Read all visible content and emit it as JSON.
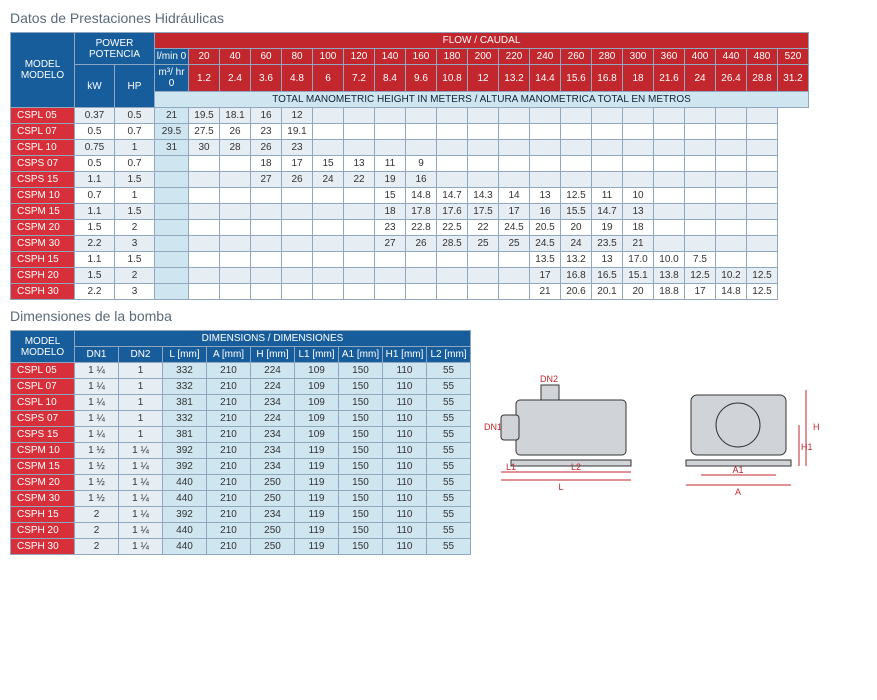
{
  "hydraulic": {
    "title": "Datos de Prestaciones Hidráulicas",
    "model_hdr": "MODEL MODELO",
    "power_hdr": "POWER POTENCIA",
    "kw_hdr": "kW",
    "hp_hdr": "HP",
    "flow_hdr": "FLOW / CAUDAL",
    "lmin_hdr": "l/min 0",
    "m3hr_hdr": "m³/ hr 0",
    "band": "TOTAL MANOMETRIC HEIGHT IN METERS / ALTURA MANOMETRICA TOTAL EN METROS",
    "flow_lmin": [
      "20",
      "40",
      "60",
      "80",
      "100",
      "120",
      "140",
      "160",
      "180",
      "200",
      "220",
      "240",
      "260",
      "280",
      "300",
      "360",
      "400",
      "440",
      "480",
      "520"
    ],
    "flow_m3hr": [
      "1.2",
      "2.4",
      "3.6",
      "4.8",
      "6",
      "7.2",
      "8.4",
      "9.6",
      "10.8",
      "12",
      "13.2",
      "14.4",
      "15.6",
      "16.8",
      "18",
      "21.6",
      "24",
      "26.4",
      "28.8",
      "31.2"
    ],
    "rows": [
      {
        "m": "CSPL 05",
        "kw": "0.37",
        "hp": "0.5",
        "v": [
          "21",
          "19.5",
          "18.1",
          "16",
          "12",
          "",
          "",
          "",
          "",
          "",
          "",
          "",
          "",
          "",
          "",
          "",
          "",
          "",
          "",
          ""
        ]
      },
      {
        "m": "CSPL 07",
        "kw": "0.5",
        "hp": "0.7",
        "v": [
          "29.5",
          "27.5",
          "26",
          "23",
          "19.1",
          "",
          "",
          "",
          "",
          "",
          "",
          "",
          "",
          "",
          "",
          "",
          "",
          "",
          "",
          ""
        ]
      },
      {
        "m": "CSPL 10",
        "kw": "0.75",
        "hp": "1",
        "v": [
          "31",
          "30",
          "28",
          "26",
          "23",
          "",
          "",
          "",
          "",
          "",
          "",
          "",
          "",
          "",
          "",
          "",
          "",
          "",
          "",
          ""
        ]
      },
      {
        "m": "CSPS 07",
        "kw": "0.5",
        "hp": "0.7",
        "v": [
          "",
          "",
          "",
          "18",
          "17",
          "15",
          "13",
          "11",
          "9",
          "",
          "",
          "",
          "",
          "",
          "",
          "",
          "",
          "",
          "",
          ""
        ]
      },
      {
        "m": "CSPS 15",
        "kw": "1.1",
        "hp": "1.5",
        "v": [
          "",
          "",
          "",
          "27",
          "26",
          "24",
          "22",
          "19",
          "16",
          "",
          "",
          "",
          "",
          "",
          "",
          "",
          "",
          "",
          "",
          ""
        ]
      },
      {
        "m": "CSPM 10",
        "kw": "0.7",
        "hp": "1",
        "v": [
          "",
          "",
          "",
          "",
          "",
          "",
          "",
          "15",
          "14.8",
          "14.7",
          "14.3",
          "14",
          "13",
          "12.5",
          "11",
          "10",
          "",
          "",
          "",
          ""
        ]
      },
      {
        "m": "CSPM 15",
        "kw": "1.1",
        "hp": "1.5",
        "v": [
          "",
          "",
          "",
          "",
          "",
          "",
          "",
          "18",
          "17.8",
          "17.6",
          "17.5",
          "17",
          "16",
          "15.5",
          "14.7",
          "13",
          "",
          "",
          "",
          ""
        ]
      },
      {
        "m": "CSPM 20",
        "kw": "1.5",
        "hp": "2",
        "v": [
          "",
          "",
          "",
          "",
          "",
          "",
          "",
          "23",
          "22.8",
          "22.5",
          "22",
          "24.5",
          "20.5",
          "20",
          "19",
          "18",
          "",
          "",
          "",
          ""
        ]
      },
      {
        "m": "CSPM 30",
        "kw": "2.2",
        "hp": "3",
        "v": [
          "",
          "",
          "",
          "",
          "",
          "",
          "",
          "27",
          "26",
          "28.5",
          "25",
          "25",
          "24.5",
          "24",
          "23.5",
          "21",
          "",
          "",
          "",
          ""
        ]
      },
      {
        "m": "CSPH 15",
        "kw": "1.1",
        "hp": "1.5",
        "v": [
          "",
          "",
          "",
          "",
          "",
          "",
          "",
          "",
          "",
          "",
          "",
          "",
          "13.5",
          "13.2",
          "13",
          "17.0",
          "10.0",
          "7.5",
          "",
          ""
        ]
      },
      {
        "m": "CSPH 20",
        "kw": "1.5",
        "hp": "2",
        "v": [
          "",
          "",
          "",
          "",
          "",
          "",
          "",
          "",
          "",
          "",
          "",
          "",
          "17",
          "16.8",
          "16.5",
          "15.1",
          "13.8",
          "12.5",
          "10.2",
          "12.5"
        ]
      },
      {
        "m": "CSPH 30",
        "kw": "2.2",
        "hp": "3",
        "v": [
          "",
          "",
          "",
          "",
          "",
          "",
          "",
          "",
          "",
          "",
          "",
          "",
          "21",
          "20.6",
          "20.1",
          "20",
          "18.8",
          "17",
          "14.8",
          "12.5"
        ]
      }
    ]
  },
  "dimensions": {
    "title": "Dimensiones de la bomba",
    "model_hdr": "MODEL MODELO",
    "dims_hdr": "DIMENSIONS / DIMENSIONES",
    "cols": [
      "DN1",
      "DN2",
      "L [mm]",
      "A [mm]",
      "H [mm]",
      "L1 [mm]",
      "A1 [mm]",
      "H1 [mm]",
      "L2 [mm]"
    ],
    "rows": [
      {
        "m": "CSPL 05",
        "v": [
          "1 ¼",
          "1",
          "332",
          "210",
          "224",
          "109",
          "150",
          "110",
          "55"
        ]
      },
      {
        "m": "CSPL 07",
        "v": [
          "1 ¼",
          "1",
          "332",
          "210",
          "224",
          "109",
          "150",
          "110",
          "55"
        ]
      },
      {
        "m": "CSPL 10",
        "v": [
          "1 ¼",
          "1",
          "381",
          "210",
          "234",
          "109",
          "150",
          "110",
          "55"
        ]
      },
      {
        "m": "CSPS 07",
        "v": [
          "1 ¼",
          "1",
          "332",
          "210",
          "224",
          "109",
          "150",
          "110",
          "55"
        ]
      },
      {
        "m": "CSPS 15",
        "v": [
          "1 ¼",
          "1",
          "381",
          "210",
          "234",
          "109",
          "150",
          "110",
          "55"
        ]
      },
      {
        "m": "CSPM 10",
        "v": [
          "1 ½",
          "1 ¼",
          "392",
          "210",
          "234",
          "119",
          "150",
          "110",
          "55"
        ]
      },
      {
        "m": "CSPM 15",
        "v": [
          "1 ½",
          "1 ¼",
          "392",
          "210",
          "234",
          "119",
          "150",
          "110",
          "55"
        ]
      },
      {
        "m": "CSPM 20",
        "v": [
          "1 ½",
          "1 ¼",
          "440",
          "210",
          "250",
          "119",
          "150",
          "110",
          "55"
        ]
      },
      {
        "m": "CSPM 30",
        "v": [
          "1 ½",
          "1 ¼",
          "440",
          "210",
          "250",
          "119",
          "150",
          "110",
          "55"
        ]
      },
      {
        "m": "CSPH 15",
        "v": [
          "2",
          "1 ¼",
          "392",
          "210",
          "234",
          "119",
          "150",
          "110",
          "55"
        ]
      },
      {
        "m": "CSPH 20",
        "v": [
          "2",
          "1 ¼",
          "440",
          "210",
          "250",
          "119",
          "150",
          "110",
          "55"
        ]
      },
      {
        "m": "CSPH 30",
        "v": [
          "2",
          "1 ¼",
          "440",
          "210",
          "250",
          "119",
          "150",
          "110",
          "55"
        ]
      }
    ],
    "diagram_labels": {
      "dn1": "DN1",
      "dn2": "DN2",
      "l": "L",
      "l1": "L1",
      "l2": "L2",
      "a": "A",
      "a1": "A1",
      "h": "H",
      "h1": "H1"
    }
  },
  "colors": {
    "hdr_blue": "#175d9c",
    "hdr_red": "#c1272d",
    "row_red": "#d8303a",
    "band": "#cfe6f1",
    "alt": "#e6edf3",
    "border": "#8fa8c0",
    "title": "#5a6b7a"
  }
}
